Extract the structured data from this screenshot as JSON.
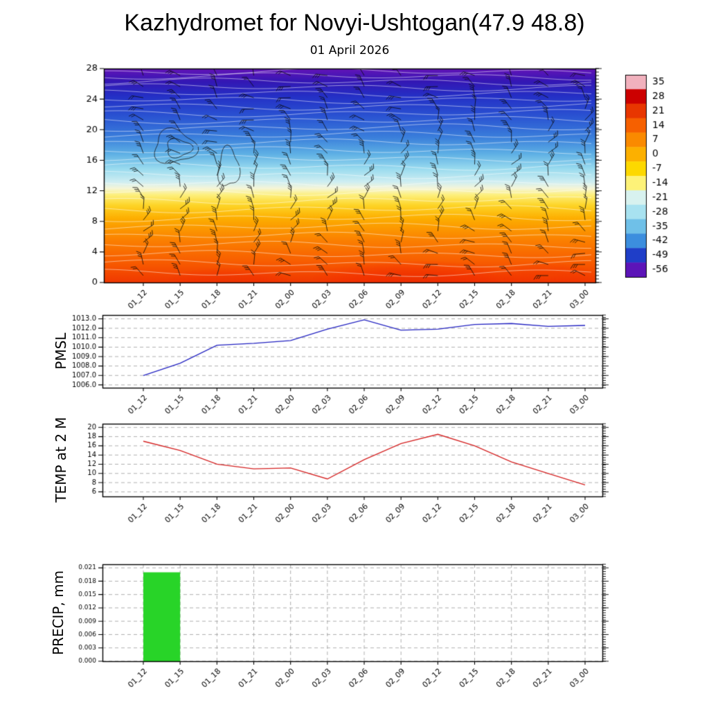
{
  "title": "Kazhydromet for Novyi-Ushtogan(47.9 48.8)",
  "subtitle": "01 April 2026",
  "time_labels": [
    "01_12",
    "01_15",
    "01_18",
    "01_21",
    "02_00",
    "02_03",
    "02_06",
    "02_09",
    "02_12",
    "02_15",
    "02_18",
    "02_21",
    "03_00"
  ],
  "chart_data": [
    {
      "id": "upper_air",
      "type": "heatmap",
      "ylabel": "",
      "ylim": [
        0,
        28
      ],
      "yticks": [
        0,
        4,
        8,
        12,
        16,
        20,
        24,
        28
      ],
      "wind_barbs": true,
      "gradient_stops": [
        {
          "pos": 0.0,
          "color": "#f03800"
        },
        {
          "pos": 0.1,
          "color": "#f85e00"
        },
        {
          "pos": 0.2,
          "color": "#fb8100"
        },
        {
          "pos": 0.3,
          "color": "#fdae00"
        },
        {
          "pos": 0.36,
          "color": "#fdd426"
        },
        {
          "pos": 0.41,
          "color": "#fdf07e"
        },
        {
          "pos": 0.44,
          "color": "#f6f6d8"
        },
        {
          "pos": 0.47,
          "color": "#cfeef2"
        },
        {
          "pos": 0.53,
          "color": "#9bdcef"
        },
        {
          "pos": 0.6,
          "color": "#5fb1e5"
        },
        {
          "pos": 0.68,
          "color": "#3a7edb"
        },
        {
          "pos": 0.78,
          "color": "#2a52d2"
        },
        {
          "pos": 0.87,
          "color": "#2430c6"
        },
        {
          "pos": 0.94,
          "color": "#3417b4"
        },
        {
          "pos": 1.0,
          "color": "#6414b8"
        }
      ],
      "colorbar": {
        "ticks": [
          35,
          28,
          21,
          14,
          7,
          0,
          -7,
          -14,
          -21,
          -28,
          -35,
          -42,
          -49,
          -56
        ],
        "colors": [
          "#f1b1bd",
          "#cc0000",
          "#e83600",
          "#f66000",
          "#fa8a00",
          "#fcb000",
          "#fdd800",
          "#fdf278",
          "#d8f2ef",
          "#a8e2f0",
          "#6fc0e8",
          "#3c8ede",
          "#1f3ec8",
          "#5c14b8"
        ]
      }
    },
    {
      "id": "pmsl",
      "type": "line",
      "ylabel": "PMSL",
      "color": "#2020c0",
      "ylim": [
        1005.7,
        1013.4
      ],
      "yticks": [
        1006.0,
        1007.0,
        1008.0,
        1009.0,
        1010.0,
        1011.0,
        1012.0,
        1013.0
      ],
      "ytick_labels": [
        "1006.0",
        "1007.0",
        "1008.0",
        "1009.0",
        "1010.0",
        "1011.0",
        "1012.0",
        "1013.0"
      ],
      "values": [
        1007.0,
        1008.3,
        1010.2,
        1010.4,
        1010.7,
        1011.9,
        1012.9,
        1011.8,
        1011.9,
        1012.4,
        1012.5,
        1012.2,
        1012.3
      ]
    },
    {
      "id": "temp2m",
      "type": "line",
      "ylabel": "TEMP at 2 M",
      "color": "#d42020",
      "ylim": [
        5.0,
        20.8
      ],
      "yticks": [
        6,
        8,
        10,
        12,
        14,
        16,
        18,
        20
      ],
      "values": [
        17.0,
        15.0,
        12.0,
        11.0,
        11.2,
        8.8,
        13.0,
        16.5,
        18.5,
        16.0,
        12.5,
        10.0,
        7.5
      ]
    },
    {
      "id": "precip",
      "type": "bar",
      "ylabel": "PRECIP, mm",
      "color": "#28d428",
      "ylim": [
        0,
        0.0218
      ],
      "yticks": [
        0.0,
        0.003,
        0.006,
        0.009,
        0.012,
        0.015,
        0.018,
        0.021
      ],
      "ytick_labels": [
        "0.000",
        "0.003",
        "0.006",
        "0.009",
        "0.012",
        "0.015",
        "0.018",
        "0.021"
      ],
      "values": [
        0,
        0.02,
        0,
        0,
        0,
        0,
        0,
        0,
        0,
        0,
        0,
        0,
        0
      ]
    }
  ]
}
